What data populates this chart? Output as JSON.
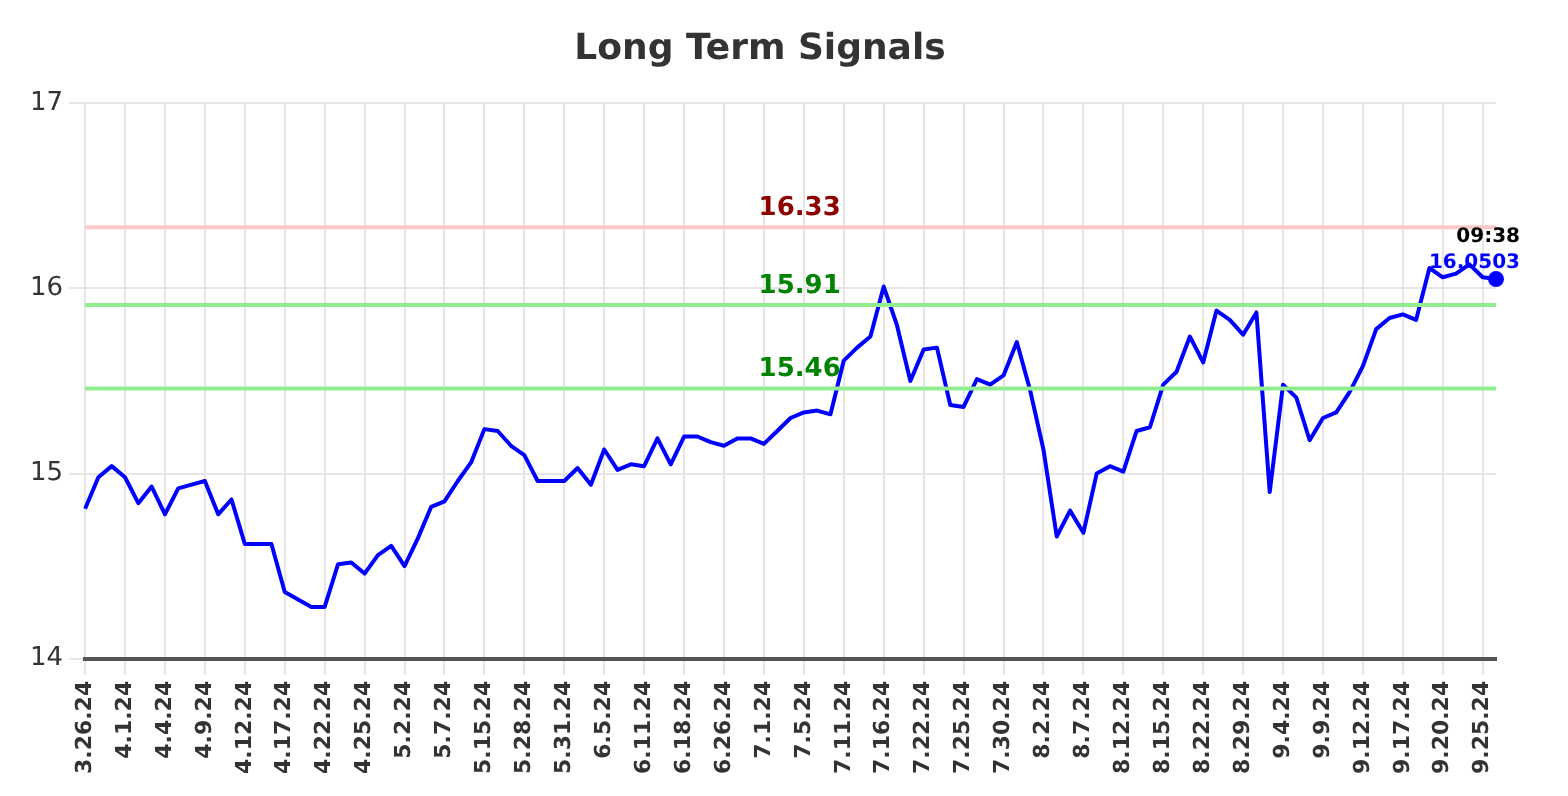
{
  "chart_data": {
    "type": "line",
    "title": "Long Term Signals",
    "categories": [
      "3.26.24",
      null,
      null,
      "4.1.24",
      null,
      null,
      "4.4.24",
      null,
      null,
      "4.9.24",
      null,
      null,
      "4.12.24",
      null,
      null,
      "4.17.24",
      null,
      null,
      "4.22.24",
      null,
      null,
      "4.25.24",
      null,
      null,
      "5.2.24",
      null,
      null,
      "5.7.24",
      null,
      null,
      "5.15.24",
      null,
      null,
      "5.28.24",
      null,
      null,
      "5.31.24",
      null,
      null,
      "6.5.24",
      null,
      null,
      "6.11.24",
      null,
      null,
      "6.18.24",
      null,
      null,
      "6.26.24",
      null,
      null,
      "7.1.24",
      null,
      null,
      "7.5.24",
      null,
      null,
      "7.11.24",
      null,
      null,
      "7.16.24",
      null,
      null,
      "7.22.24",
      null,
      null,
      "7.25.24",
      null,
      null,
      "7.30.24",
      null,
      null,
      "8.2.24",
      null,
      null,
      "8.7.24",
      null,
      null,
      "8.12.24",
      null,
      null,
      "8.15.24",
      null,
      null,
      "8.22.24",
      null,
      null,
      "8.29.24",
      null,
      null,
      "9.4.24",
      null,
      null,
      "9.9.24",
      null,
      null,
      "9.12.24",
      null,
      null,
      "9.17.24",
      null,
      null,
      "9.20.24",
      null,
      null,
      "9.25.24",
      null
    ],
    "series": [
      {
        "color": "#0000ff",
        "values": [
          14.81,
          14.98,
          15.04,
          14.98,
          14.84,
          14.93,
          14.78,
          14.92,
          14.94,
          14.96,
          14.78,
          14.86,
          14.62,
          14.62,
          14.62,
          14.36,
          14.32,
          14.28,
          14.28,
          14.51,
          14.52,
          14.46,
          14.56,
          14.61,
          14.5,
          14.65,
          14.82,
          14.85,
          14.96,
          15.06,
          15.24,
          15.23,
          15.15,
          15.1,
          14.96,
          14.96,
          14.96,
          15.03,
          14.94,
          15.13,
          15.02,
          15.05,
          15.04,
          15.19,
          15.05,
          15.2,
          15.2,
          15.17,
          15.15,
          15.19,
          15.19,
          15.16,
          15.23,
          15.3,
          15.33,
          15.34,
          15.32,
          15.61,
          15.68,
          15.74,
          16.01,
          15.8,
          15.5,
          15.67,
          15.68,
          15.37,
          15.36,
          15.51,
          15.48,
          15.53,
          15.71,
          15.45,
          15.13,
          14.66,
          14.8,
          14.68,
          15.0,
          15.04,
          15.01,
          15.23,
          15.25,
          15.48,
          15.55,
          15.74,
          15.6,
          15.88,
          15.83,
          15.75,
          15.87,
          14.9,
          15.48,
          15.41,
          15.18,
          15.3,
          15.33,
          15.44,
          15.58,
          15.78,
          15.84,
          15.86,
          15.83,
          16.11,
          16.06,
          16.08,
          16.13,
          16.06,
          16.0503
        ]
      }
    ],
    "ylim": [
      14,
      17
    ],
    "yticks": [
      14,
      15,
      16,
      17
    ],
    "grid": true,
    "legend": false,
    "marker": "none",
    "line_style": "solid",
    "ref_lines": [
      {
        "axis": "y",
        "value": 16.33,
        "label": "16.33",
        "color": "#ffc8c8"
      },
      {
        "axis": "y",
        "value": 15.91,
        "label": "15.91",
        "color": "#90ee90"
      },
      {
        "axis": "y",
        "value": 15.46,
        "label": "15.46",
        "color": "#90ee90"
      }
    ],
    "annotations": [
      {
        "text": "09:38",
        "y": 16.0503
      },
      {
        "text": "16.0503",
        "y": 16.0503
      }
    ]
  }
}
